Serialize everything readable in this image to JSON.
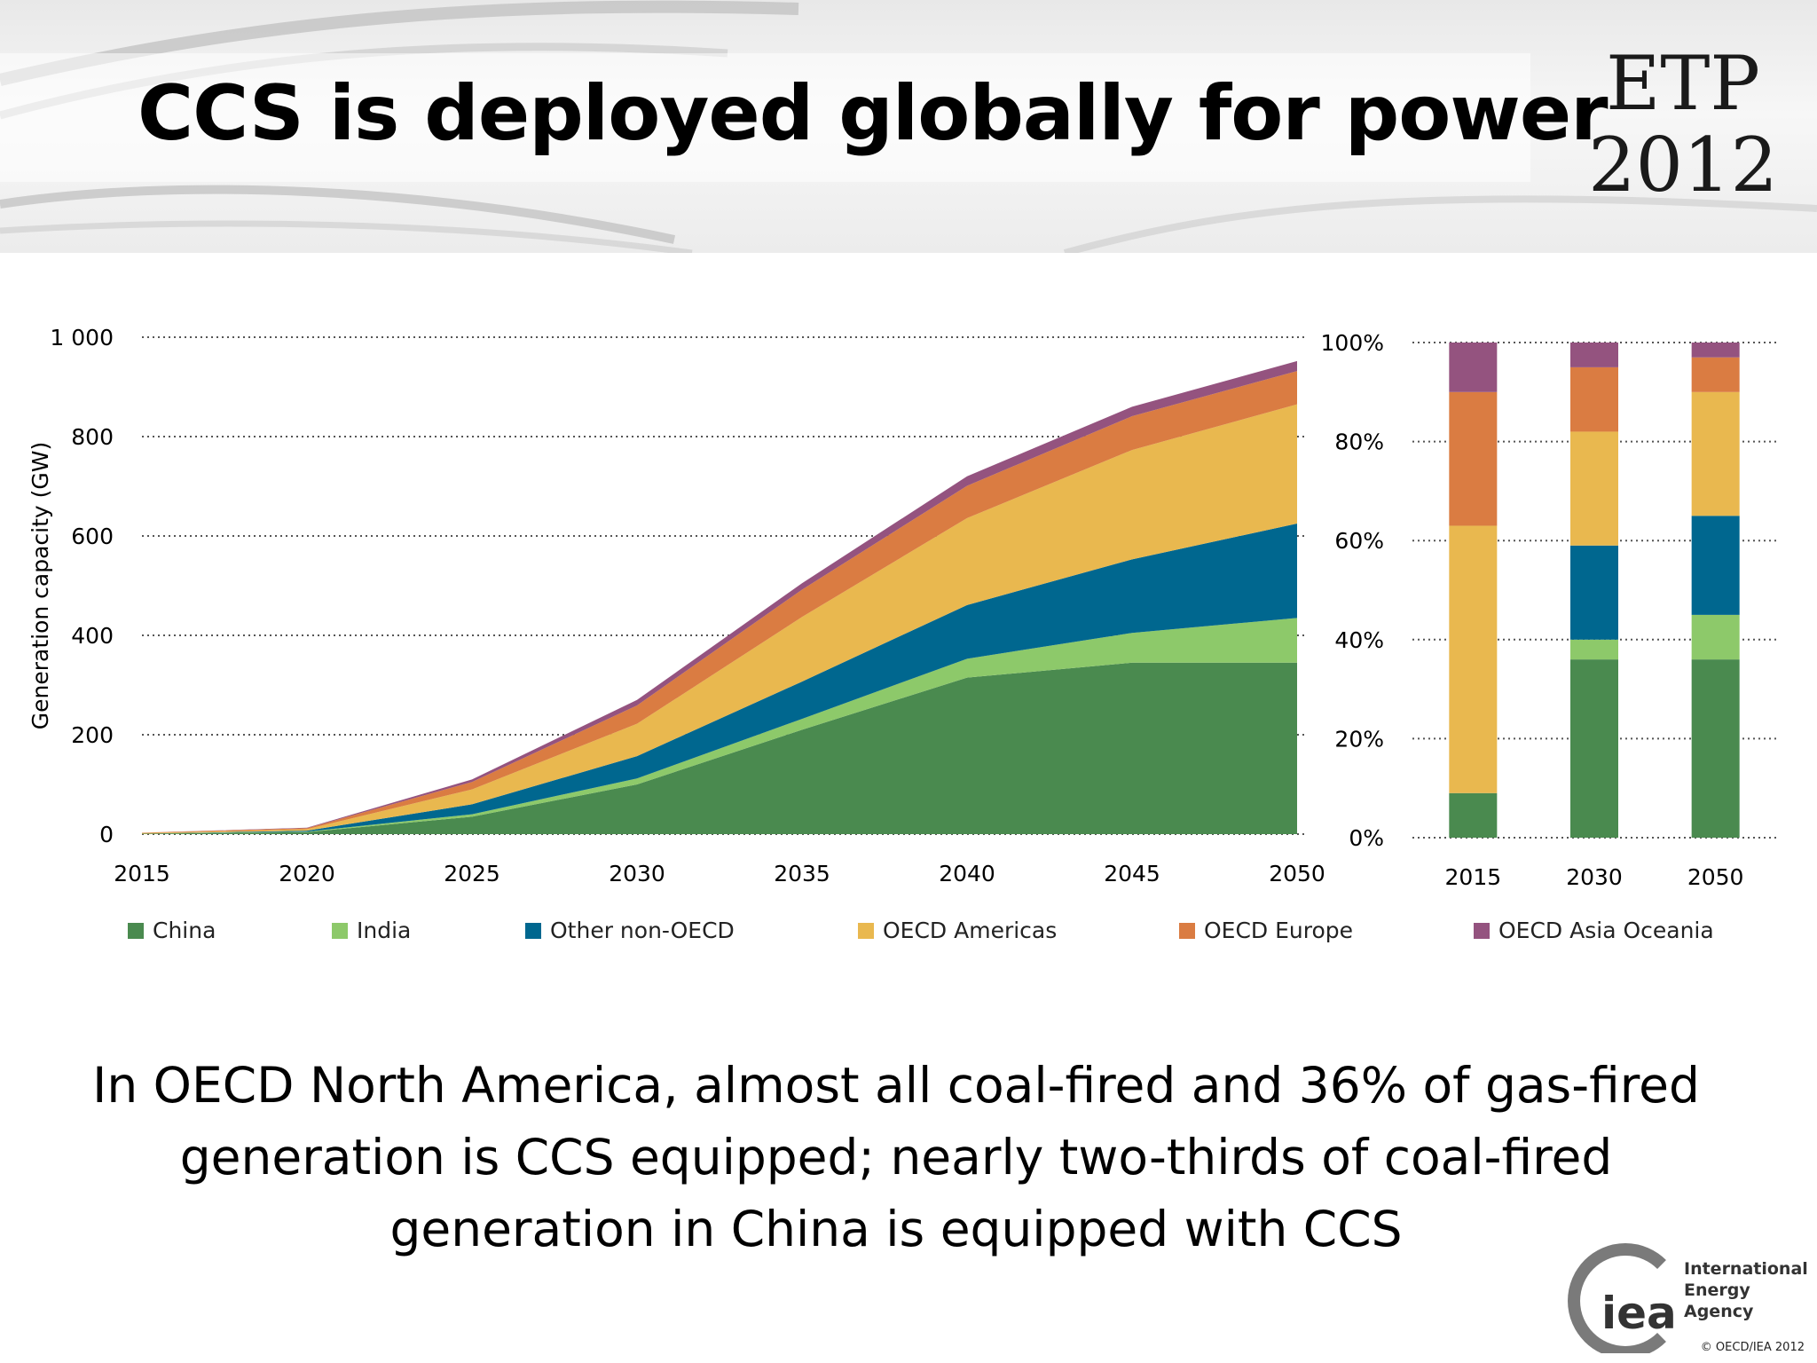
{
  "slide": {
    "title": "CCS is deployed globally for power",
    "badge_line1": "ETP",
    "badge_line2": "2012",
    "caption": "In OECD North America, almost all coal-fired and 36% of gas-fired generation is CCS equipped; nearly two-thirds of coal-fired generation in China is equipped with CCS",
    "logo_text": "iea",
    "org_line1": "International",
    "org_line2": "Energy Agency",
    "copyright": "© OECD/IEA 2012"
  },
  "colors": {
    "China": "#4a8a4f",
    "India": "#8dc96a",
    "Other non-OECD": "#00678f",
    "OECD Americas": "#e9b84f",
    "OECD Europe": "#da7c42",
    "OECD Asia Oceania": "#94537f"
  },
  "chart_data": [
    {
      "type": "area",
      "stacked": true,
      "title": "",
      "xlabel": "",
      "ylabel": "Generation capacity (GW)",
      "x": [
        2015,
        2020,
        2025,
        2030,
        2035,
        2040,
        2045,
        2050
      ],
      "xticks": [
        "2015",
        "2020",
        "2025",
        "2030",
        "2035",
        "2040",
        "2045",
        "2050"
      ],
      "yticks": [
        "0",
        "200",
        "400",
        "600",
        "800",
        "1 000"
      ],
      "ylim": [
        0,
        1000
      ],
      "grid": "horizontal-dotted",
      "legend": "bottom",
      "series": [
        {
          "name": "China",
          "values": [
            1,
            4,
            35,
            100,
            210,
            315,
            345,
            345
          ]
        },
        {
          "name": "India",
          "values": [
            0,
            1,
            5,
            12,
            22,
            38,
            60,
            90
          ]
        },
        {
          "name": "Other non-OECD",
          "values": [
            0,
            2,
            20,
            45,
            75,
            108,
            148,
            190
          ]
        },
        {
          "name": "OECD Americas",
          "values": [
            1,
            3,
            30,
            65,
            130,
            175,
            220,
            240
          ]
        },
        {
          "name": "OECD Europe",
          "values": [
            1,
            2,
            15,
            37,
            55,
            65,
            68,
            67
          ]
        },
        {
          "name": "OECD Asia Oceania",
          "values": [
            0,
            1,
            5,
            11,
            13,
            19,
            19,
            20
          ]
        }
      ]
    },
    {
      "type": "bar",
      "stacked": true,
      "percent": true,
      "title": "",
      "categories": [
        "2015",
        "2030",
        "2050"
      ],
      "yticks": [
        "0%",
        "20%",
        "40%",
        "60%",
        "80%",
        "100%"
      ],
      "ylim": [
        0,
        100
      ],
      "grid": "horizontal-dotted",
      "series": [
        {
          "name": "China",
          "values": [
            9,
            36,
            36
          ]
        },
        {
          "name": "India",
          "values": [
            0,
            4,
            9
          ]
        },
        {
          "name": "Other non-OECD",
          "values": [
            0,
            19,
            20
          ]
        },
        {
          "name": "OECD Americas",
          "values": [
            54,
            23,
            25
          ]
        },
        {
          "name": "OECD Europe",
          "values": [
            27,
            13,
            7
          ]
        },
        {
          "name": "OECD Asia Oceania",
          "values": [
            10,
            5,
            3
          ]
        }
      ]
    }
  ]
}
